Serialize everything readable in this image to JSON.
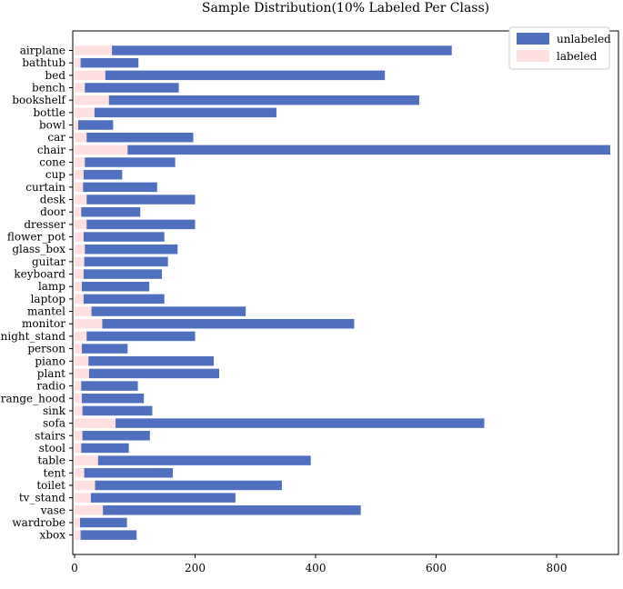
{
  "chart_data": {
    "type": "bar",
    "orientation": "horizontal",
    "stacked": true,
    "title": "Sample Distribution(10% Labeled Per Class)",
    "xlabel": "",
    "ylabel": "",
    "xlim": [
      0,
      920
    ],
    "xticks": [
      0,
      200,
      400,
      600,
      800
    ],
    "grid": false,
    "legend_position": "top-right",
    "categories": [
      "airplane",
      "bathtub",
      "bed",
      "bench",
      "bookshelf",
      "bottle",
      "bowl",
      "car",
      "chair",
      "cone",
      "cup",
      "curtain",
      "desk",
      "door",
      "dresser",
      "flower_pot",
      "glass_box",
      "guitar",
      "keyboard",
      "lamp",
      "laptop",
      "mantel",
      "monitor",
      "night_stand",
      "person",
      "piano",
      "plant",
      "radio",
      "range_hood",
      "sink",
      "sofa",
      "stairs",
      "stool",
      "table",
      "tent",
      "toilet",
      "tv_stand",
      "vase",
      "wardrobe",
      "xbox"
    ],
    "series": [
      {
        "name": "labeled",
        "color": "#ffe0e0",
        "values": [
          62,
          10,
          51,
          17,
          57,
          33,
          6,
          20,
          88,
          17,
          15,
          14,
          20,
          11,
          20,
          15,
          17,
          16,
          15,
          12,
          15,
          28,
          46,
          20,
          12,
          23,
          24,
          11,
          12,
          13,
          68,
          13,
          11,
          39,
          16,
          34,
          27,
          47,
          9,
          10
        ]
      },
      {
        "name": "unlabeled",
        "color": "#4f6fbf",
        "values": [
          564,
          96,
          464,
          156,
          515,
          302,
          58,
          177,
          801,
          150,
          64,
          123,
          180,
          98,
          180,
          134,
          154,
          139,
          130,
          112,
          134,
          256,
          418,
          180,
          76,
          208,
          216,
          94,
          103,
          116,
          612,
          112,
          79,
          353,
          147,
          310,
          240,
          428,
          78,
          93
        ]
      }
    ]
  }
}
